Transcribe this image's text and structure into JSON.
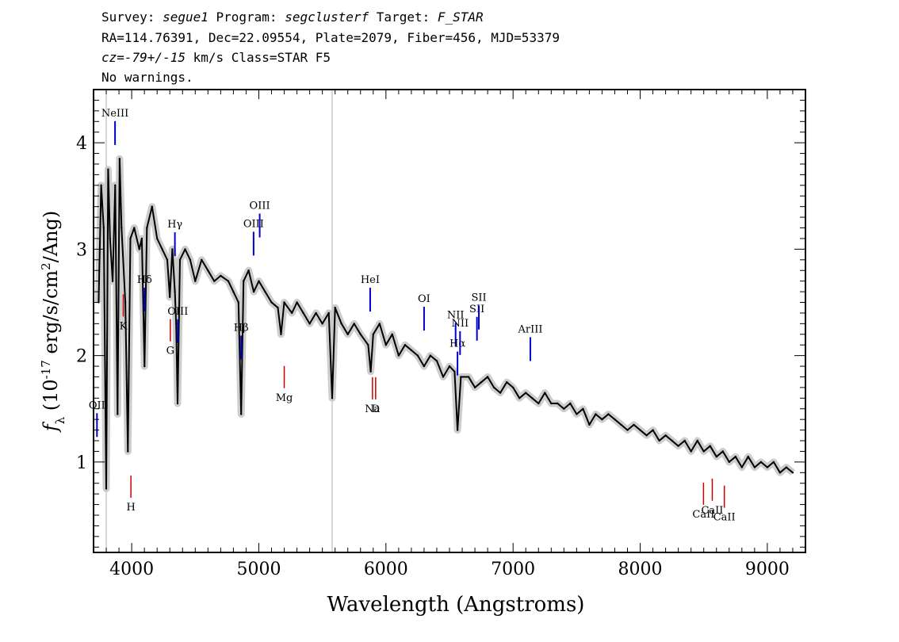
{
  "header": {
    "l1_survey_label": "Survey: ",
    "l1_survey": "segue1",
    "l1_program_label": " Program: ",
    "l1_program": "segclusterf",
    "l1_target_label": " Target: ",
    "l1_target": "F_STAR",
    "line2": "RA=114.76391, Dec=22.09554, Plate=2079, Fiber=456, MJD=53379",
    "l3_cz": "cz=-79+/-15",
    "l3_rest": " km/s Class=STAR F5",
    "line4": "No warnings."
  },
  "chart_data": {
    "type": "line",
    "xlabel": "Wavelength (Angstroms)",
    "ylabel_parts": [
      "f",
      "λ",
      " (10",
      "-17",
      " erg/s/cm",
      "2",
      "/Ang)"
    ],
    "xlim": [
      3700,
      9300
    ],
    "ylim": [
      0.15,
      4.5
    ],
    "x_ticks": [
      4000,
      5000,
      6000,
      7000,
      8000,
      9000
    ],
    "x_tick_labels": [
      "4000",
      "5000",
      "6000",
      "7000",
      "8000",
      "9000"
    ],
    "y_ticks": [
      1,
      2,
      3,
      4
    ],
    "y_tick_labels": [
      "1",
      "2",
      "3",
      "4"
    ],
    "vertical_lines": [
      3800,
      5577
    ],
    "series": [
      {
        "role": "flux",
        "color": "#000000",
        "points": [
          [
            3740,
            2.5
          ],
          [
            3760,
            3.6
          ],
          [
            3780,
            3.2
          ],
          [
            3800,
            0.75
          ],
          [
            3815,
            3.75
          ],
          [
            3830,
            3.1
          ],
          [
            3850,
            2.7
          ],
          [
            3870,
            3.6
          ],
          [
            3889,
            1.45
          ],
          [
            3905,
            3.85
          ],
          [
            3920,
            3.2
          ],
          [
            3950,
            2.5
          ],
          [
            3970,
            1.1
          ],
          [
            3990,
            3.1
          ],
          [
            4020,
            3.2
          ],
          [
            4060,
            3.0
          ],
          [
            4080,
            3.1
          ],
          [
            4101,
            1.9
          ],
          [
            4120,
            3.2
          ],
          [
            4160,
            3.4
          ],
          [
            4200,
            3.1
          ],
          [
            4240,
            3.0
          ],
          [
            4280,
            2.9
          ],
          [
            4300,
            2.55
          ],
          [
            4320,
            3.0
          ],
          [
            4340,
            2.6
          ],
          [
            4350,
            2.3
          ],
          [
            4361,
            1.55
          ],
          [
            4380,
            2.9
          ],
          [
            4420,
            3.0
          ],
          [
            4460,
            2.9
          ],
          [
            4500,
            2.7
          ],
          [
            4550,
            2.9
          ],
          [
            4600,
            2.8
          ],
          [
            4650,
            2.7
          ],
          [
            4700,
            2.75
          ],
          [
            4760,
            2.7
          ],
          [
            4800,
            2.6
          ],
          [
            4840,
            2.5
          ],
          [
            4861,
            1.45
          ],
          [
            4880,
            2.7
          ],
          [
            4920,
            2.8
          ],
          [
            4960,
            2.6
          ],
          [
            5000,
            2.7
          ],
          [
            5050,
            2.6
          ],
          [
            5100,
            2.5
          ],
          [
            5150,
            2.45
          ],
          [
            5175,
            2.2
          ],
          [
            5200,
            2.5
          ],
          [
            5260,
            2.4
          ],
          [
            5300,
            2.5
          ],
          [
            5350,
            2.4
          ],
          [
            5400,
            2.3
          ],
          [
            5450,
            2.4
          ],
          [
            5500,
            2.3
          ],
          [
            5550,
            2.4
          ],
          [
            5577,
            1.6
          ],
          [
            5600,
            2.45
          ],
          [
            5650,
            2.3
          ],
          [
            5700,
            2.2
          ],
          [
            5750,
            2.3
          ],
          [
            5800,
            2.2
          ],
          [
            5860,
            2.1
          ],
          [
            5880,
            1.85
          ],
          [
            5900,
            2.2
          ],
          [
            5950,
            2.3
          ],
          [
            6000,
            2.1
          ],
          [
            6050,
            2.2
          ],
          [
            6100,
            2.0
          ],
          [
            6150,
            2.1
          ],
          [
            6200,
            2.05
          ],
          [
            6250,
            2.0
          ],
          [
            6300,
            1.9
          ],
          [
            6350,
            2.0
          ],
          [
            6400,
            1.95
          ],
          [
            6450,
            1.8
          ],
          [
            6500,
            1.9
          ],
          [
            6540,
            1.85
          ],
          [
            6563,
            1.3
          ],
          [
            6590,
            1.8
          ],
          [
            6650,
            1.8
          ],
          [
            6700,
            1.7
          ],
          [
            6750,
            1.75
          ],
          [
            6800,
            1.8
          ],
          [
            6850,
            1.7
          ],
          [
            6900,
            1.65
          ],
          [
            6950,
            1.75
          ],
          [
            7000,
            1.7
          ],
          [
            7050,
            1.6
          ],
          [
            7100,
            1.65
          ],
          [
            7150,
            1.6
          ],
          [
            7200,
            1.55
          ],
          [
            7250,
            1.65
          ],
          [
            7300,
            1.55
          ],
          [
            7350,
            1.55
          ],
          [
            7400,
            1.5
          ],
          [
            7450,
            1.55
          ],
          [
            7500,
            1.45
          ],
          [
            7550,
            1.5
          ],
          [
            7600,
            1.35
          ],
          [
            7650,
            1.45
          ],
          [
            7700,
            1.4
          ],
          [
            7750,
            1.45
          ],
          [
            7800,
            1.4
          ],
          [
            7850,
            1.35
          ],
          [
            7900,
            1.3
          ],
          [
            7950,
            1.35
          ],
          [
            8000,
            1.3
          ],
          [
            8050,
            1.25
          ],
          [
            8100,
            1.3
          ],
          [
            8150,
            1.2
          ],
          [
            8200,
            1.25
          ],
          [
            8250,
            1.2
          ],
          [
            8300,
            1.15
          ],
          [
            8350,
            1.2
          ],
          [
            8400,
            1.1
          ],
          [
            8450,
            1.2
          ],
          [
            8500,
            1.1
          ],
          [
            8550,
            1.15
          ],
          [
            8600,
            1.05
          ],
          [
            8650,
            1.1
          ],
          [
            8700,
            1.0
          ],
          [
            8750,
            1.05
          ],
          [
            8800,
            0.95
          ],
          [
            8850,
            1.05
          ],
          [
            8900,
            0.95
          ],
          [
            8950,
            1.0
          ],
          [
            9000,
            0.95
          ],
          [
            9050,
            1.0
          ],
          [
            9100,
            0.9
          ],
          [
            9150,
            0.95
          ],
          [
            9200,
            0.9
          ]
        ]
      }
    ],
    "emission_lines": [
      {
        "label": "OII",
        "x": 3727
      },
      {
        "label": "NeIII",
        "x": 3869
      },
      {
        "label": "Hδ",
        "x": 4101
      },
      {
        "label": "Hγ",
        "x": 4340
      },
      {
        "label": "OIII",
        "x": 4363
      },
      {
        "label": "Hβ",
        "x": 4861
      },
      {
        "label": "OIII",
        "x": 4959
      },
      {
        "label": "OIII",
        "x": 5007
      },
      {
        "label": "HeI",
        "x": 5876
      },
      {
        "label": "OI",
        "x": 6300
      },
      {
        "label": "NII",
        "x": 6548
      },
      {
        "label": "Hα",
        "x": 6563
      },
      {
        "label": "NII",
        "x": 6583
      },
      {
        "label": "SII",
        "x": 6716
      },
      {
        "label": "SII",
        "x": 6731
      },
      {
        "label": "ArIII",
        "x": 7136
      }
    ],
    "absorption_lines": [
      {
        "label": "K",
        "x": 3934
      },
      {
        "label": "H",
        "x": 3969
      },
      {
        "label": "G",
        "x": 4304
      },
      {
        "label": "Mg",
        "x": 5175
      },
      {
        "label": "Na",
        "x": 5894
      },
      {
        "label": "D",
        "x": 5894
      },
      {
        "label": "CaII",
        "x": 8498
      },
      {
        "label": "CaII",
        "x": 8542
      },
      {
        "label": "CaII",
        "x": 8662
      }
    ],
    "colors": {
      "flux": "#000000",
      "error": "#c8c8c8",
      "emission": "#0000cc",
      "absorption": "#cc0000",
      "sky": "#b0b0b0"
    }
  }
}
